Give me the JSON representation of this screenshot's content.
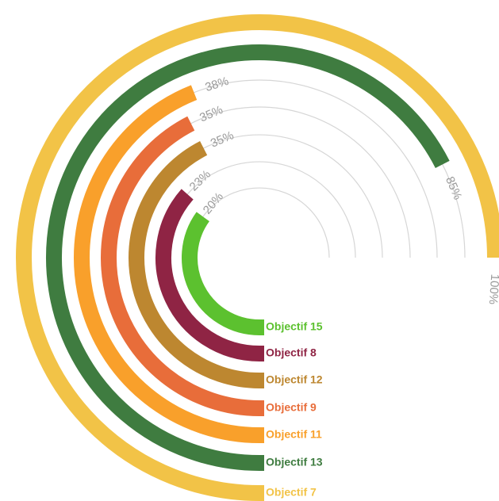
{
  "chart_data": {
    "type": "radial-bar",
    "start_angle_deg": 180,
    "max_value": 100,
    "series": [
      {
        "name": "Objectif 15",
        "value": 20,
        "label": "20%",
        "color": "#5cc12f"
      },
      {
        "name": "Objectif 8",
        "value": 23,
        "label": "23%",
        "color": "#8f2444"
      },
      {
        "name": "Objectif 12",
        "value": 35,
        "label": "35%",
        "color": "#bd8730"
      },
      {
        "name": "Objectif 9",
        "value": 35,
        "label": "35%",
        "color": "#e86d3a"
      },
      {
        "name": "Objectif 11",
        "value": 38,
        "label": "38%",
        "color": "#f9a02b"
      },
      {
        "name": "Objectif 13",
        "value": 85,
        "label": "85%",
        "color": "#3f7c40"
      },
      {
        "name": "Objectif 7",
        "value": 100,
        "label": "100%",
        "color": "#f2c347"
      }
    ],
    "grid": true,
    "gridline_color": "#d6d6d6"
  }
}
